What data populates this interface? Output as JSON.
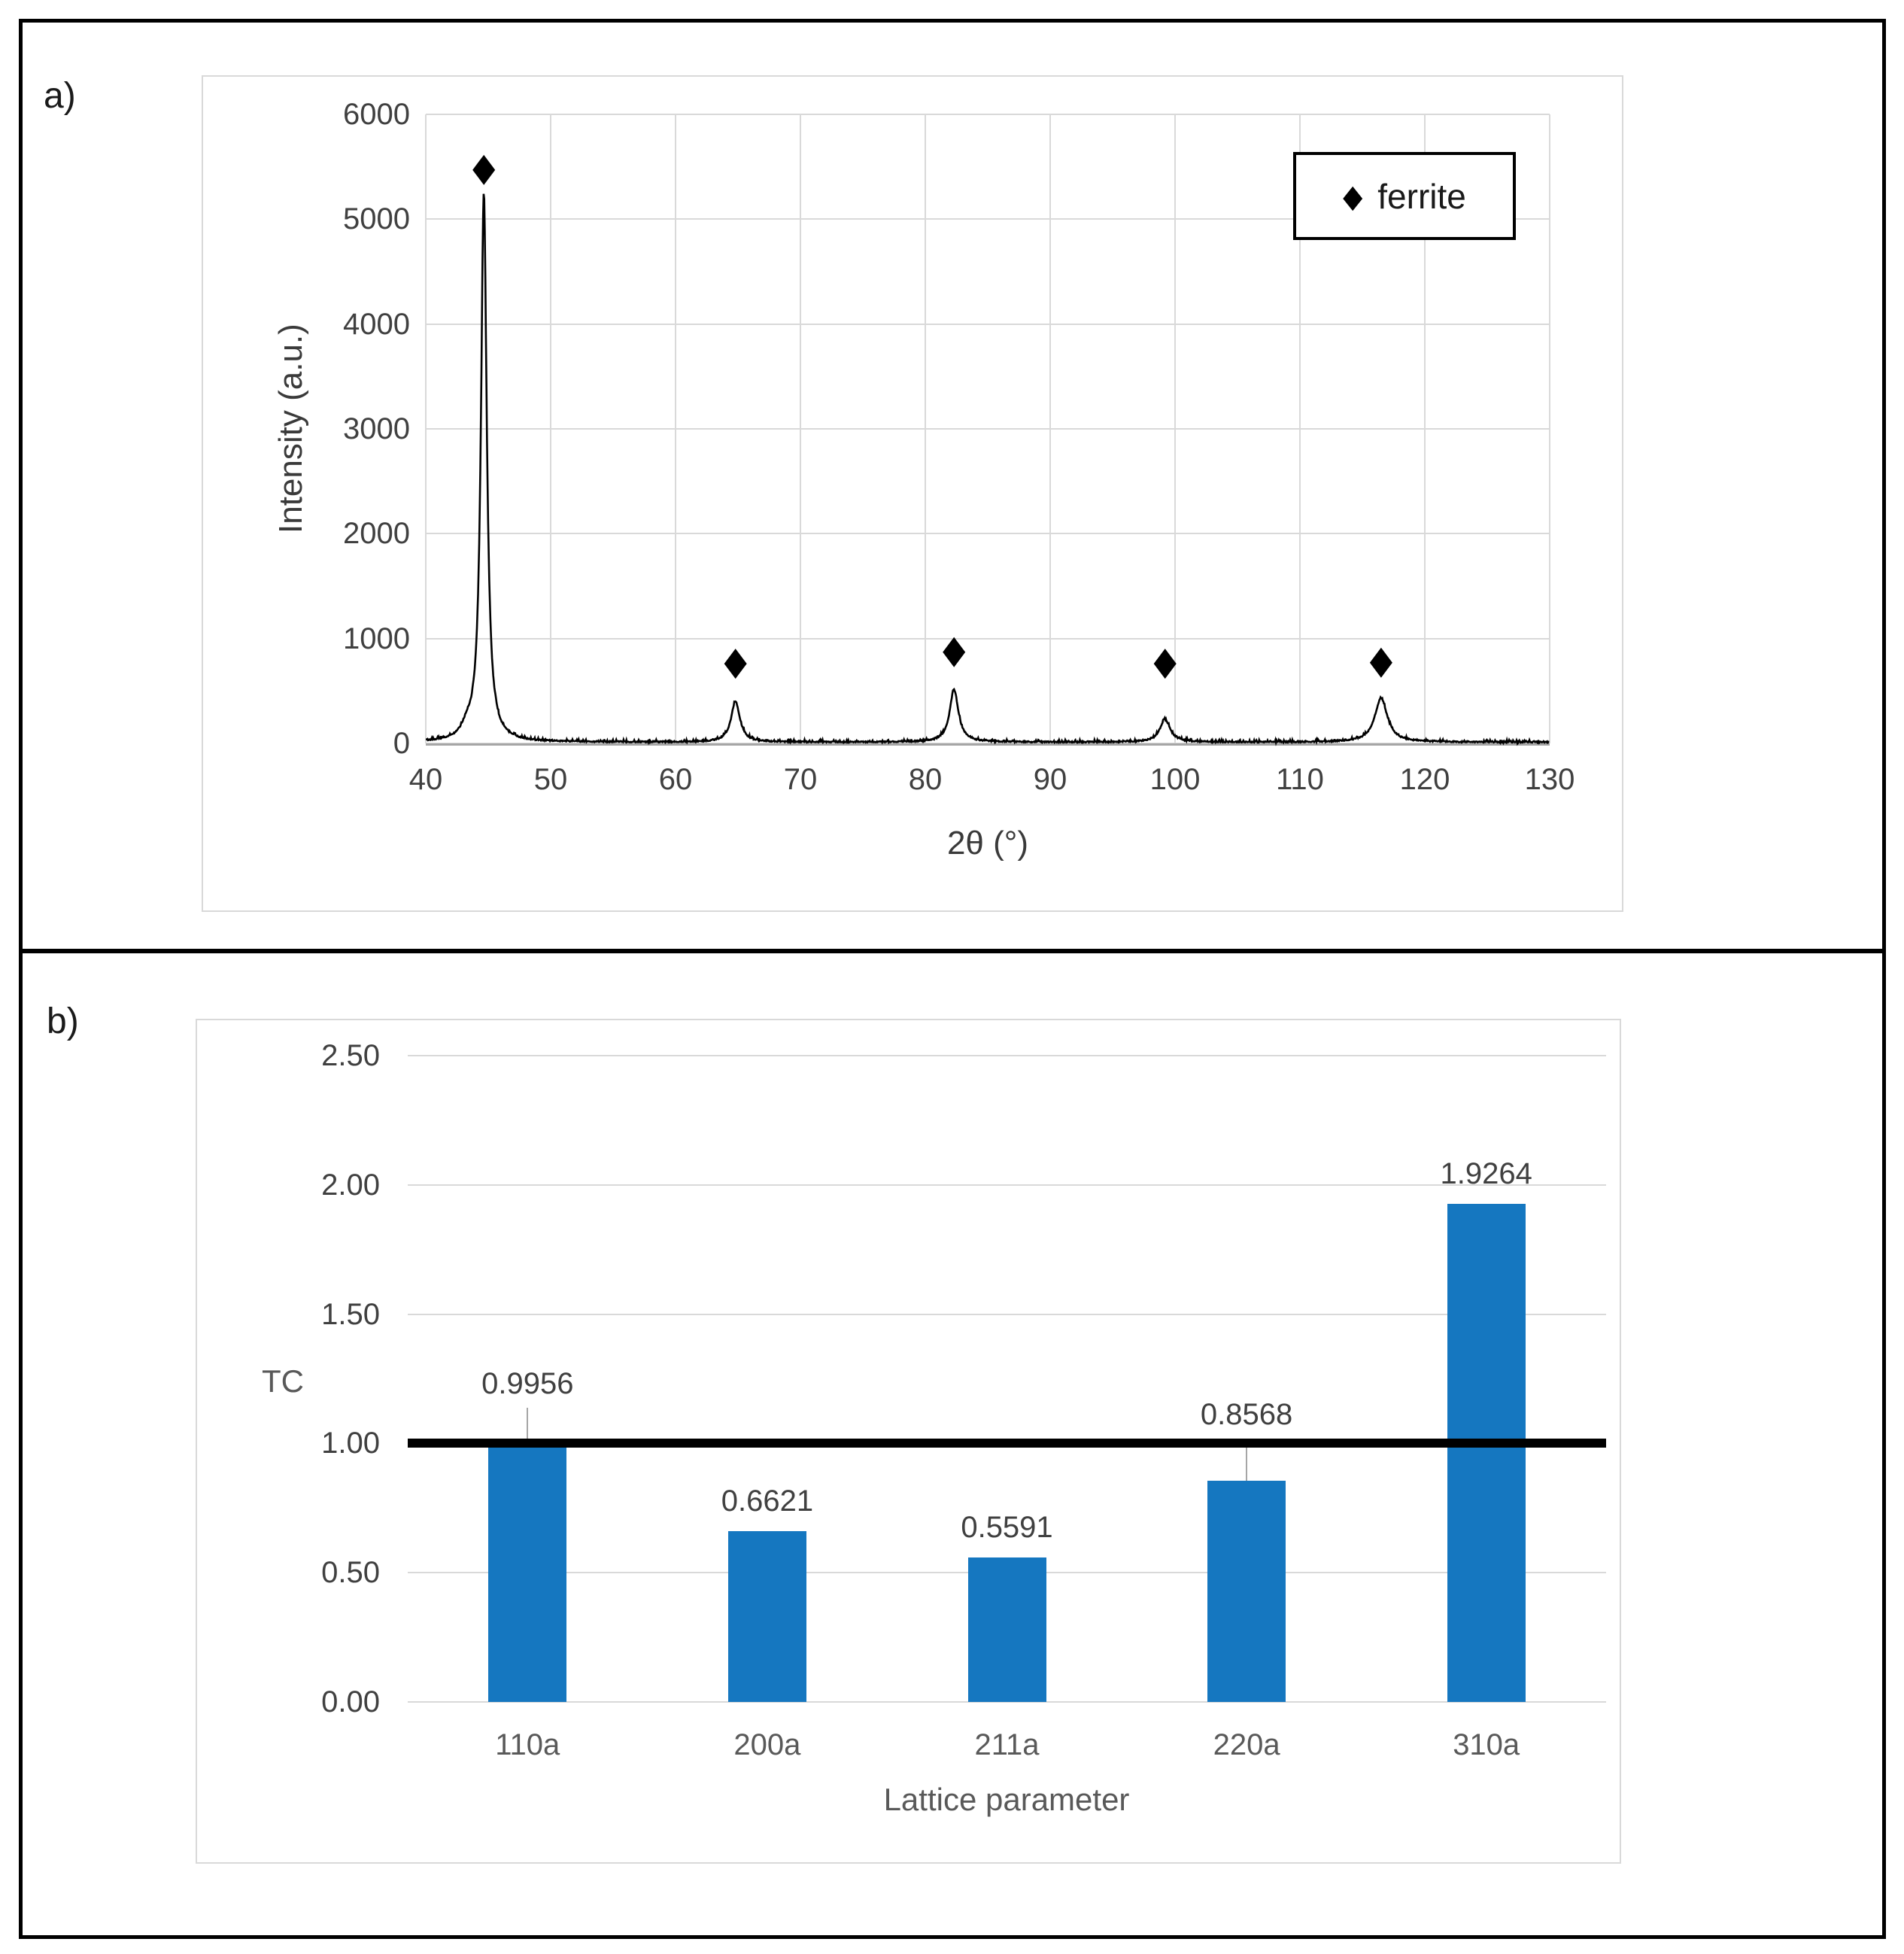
{
  "panels": {
    "a": {
      "tag": "a)"
    },
    "b": {
      "tag": "b)"
    }
  },
  "chart_data": [
    {
      "type": "line",
      "name": "xrd-pattern",
      "title": "",
      "xlabel": "2θ (°)",
      "ylabel": "Intensity (a.u.)",
      "xlim": [
        40,
        130
      ],
      "ylim": [
        0,
        6000
      ],
      "x_ticks": [
        "40",
        "50",
        "60",
        "70",
        "80",
        "90",
        "100",
        "110",
        "120",
        "130"
      ],
      "y_ticks": [
        "0",
        "1000",
        "2000",
        "3000",
        "4000",
        "5000",
        "6000"
      ],
      "grid": true,
      "legend": {
        "marker": "◆",
        "label": "ferrite",
        "position": "top-right"
      },
      "line_color": "#000000",
      "baseline_noise_max": 25,
      "peaks": [
        {
          "two_theta": 43.3,
          "intensity": 90,
          "hwhm_deg": 0.5
        },
        {
          "two_theta": 44.65,
          "intensity": 5230,
          "hwhm_deg": 0.28
        },
        {
          "two_theta": 64.8,
          "intensity": 390,
          "hwhm_deg": 0.42
        },
        {
          "two_theta": 82.3,
          "intensity": 500,
          "hwhm_deg": 0.42
        },
        {
          "two_theta": 99.2,
          "intensity": 215,
          "hwhm_deg": 0.5
        },
        {
          "two_theta": 116.5,
          "intensity": 420,
          "hwhm_deg": 0.6
        }
      ],
      "phase_markers": [
        {
          "x": 44.65,
          "y": 5470
        },
        {
          "x": 64.8,
          "y": 760
        },
        {
          "x": 82.3,
          "y": 870
        },
        {
          "x": 99.2,
          "y": 760
        },
        {
          "x": 116.5,
          "y": 770
        }
      ]
    },
    {
      "type": "bar",
      "name": "texture-coefficient",
      "title": "",
      "categories": [
        "110a",
        "200a",
        "211a",
        "220a",
        "310a"
      ],
      "values": [
        0.9956,
        0.6621,
        0.5591,
        0.8568,
        1.9264
      ],
      "value_labels": [
        "0.9956",
        "0.6621",
        "0.5591",
        "0.8568",
        "1.9264"
      ],
      "label_positions": [
        {
          "mode": "raised",
          "y_value": 1.225
        },
        {
          "mode": "above"
        },
        {
          "mode": "above"
        },
        {
          "mode": "raised",
          "y_value": 1.105
        },
        {
          "mode": "above"
        }
      ],
      "xlabel": "Lattice parameter",
      "ylabel": "TC",
      "ylim": [
        0,
        2.5
      ],
      "y_ticks": [
        "0.00",
        "0.50",
        "1.00",
        "1.50",
        "2.00",
        "2.50"
      ],
      "grid": true,
      "reference_line": {
        "value": 1.0,
        "color": "#000000"
      },
      "bar_color": "#1577c0"
    }
  ]
}
